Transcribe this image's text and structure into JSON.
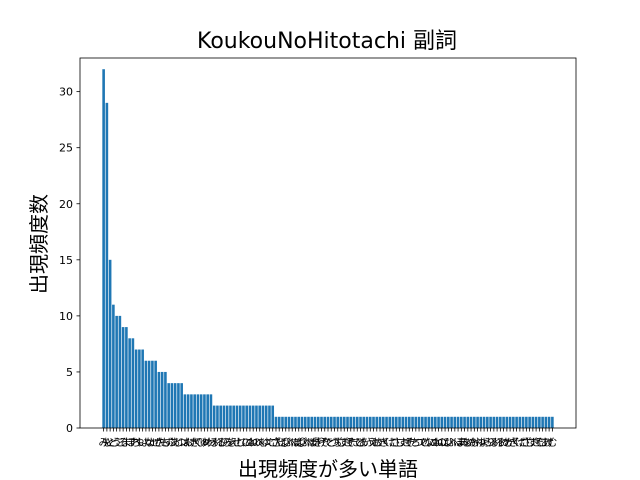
{
  "chart_data": {
    "type": "bar",
    "title": "KoukouNoHitotachi 副詞",
    "xlabel": "出現頻度が多い単語",
    "ylabel": "出現頻度数",
    "ylim": [
      0,
      33
    ],
    "yticks": [
      0,
      5,
      10,
      15,
      20,
      25,
      30
    ],
    "color": "#1f77b4",
    "grid": false,
    "categories": [
      "み",
      "も",
      "と",
      "ど",
      "う",
      "こ",
      "そ",
      "ま",
      "ほ",
      "す",
      "ち",
      "や",
      "い",
      "よ",
      "な",
      "か",
      "ぜ",
      "さ",
      "た",
      "も",
      "ず",
      "ふ",
      "あ",
      "じ",
      "つ",
      "は",
      "お",
      "け",
      "き",
      "く",
      "ひ",
      "ゆ",
      "め",
      "わ",
      "ろ",
      "れ",
      "る",
      "り",
      "ら",
      "を",
      "え",
      "せ",
      "し",
      "て",
      "に",
      "ぬ",
      "ね",
      "の",
      "へ",
      "む",
      "ゆ",
      "ぐ",
      "ご",
      "ざ",
      "だ",
      "ば",
      "び",
      "ぶ",
      "べ",
      "ぼ",
      "ぱ",
      "ぴ",
      "ぷ",
      "ぺ",
      "ぽ",
      "が",
      "ぎ",
      "げ",
      "ぞ",
      "で",
      "ど",
      "づ",
      "ぢ",
      "じ",
      "ず",
      "ぜ",
      "ぞ",
      "だ",
      "で",
      "ど",
      "あ",
      "い",
      "う",
      "え",
      "お",
      "か",
      "き",
      "く",
      "け",
      "こ",
      "さ",
      "し",
      "す",
      "せ",
      "そ",
      "た",
      "ち",
      "つ",
      "て",
      "と",
      "な",
      "に",
      "ぬ",
      "ね",
      "の",
      "は",
      "ひ",
      "ふ",
      "へ",
      "ほ",
      "ま",
      "み",
      "む",
      "め",
      "も",
      "や",
      "ゆ",
      "よ",
      "ら",
      "り",
      "る",
      "れ",
      "ろ",
      "わ",
      "を",
      "が",
      "ぎ",
      "ぐ",
      "げ",
      "ご",
      "ざ",
      "じ",
      "ず",
      "ぜ",
      "ぞ",
      "こ",
      "あ",
      "げ",
      "む"
    ],
    "values": [
      32,
      29,
      15,
      11,
      10,
      10,
      9,
      9,
      8,
      8,
      7,
      7,
      7,
      6,
      6,
      6,
      6,
      5,
      5,
      5,
      4,
      4,
      4,
      4,
      4,
      3,
      3,
      3,
      3,
      3,
      3,
      3,
      3,
      3,
      2,
      2,
      2,
      2,
      2,
      2,
      2,
      2,
      2,
      2,
      2,
      2,
      2,
      2,
      2,
      2,
      2,
      2,
      2,
      1,
      1,
      1,
      1,
      1,
      1,
      1,
      1,
      1,
      1,
      1,
      1,
      1,
      1,
      1,
      1,
      1,
      1,
      1,
      1,
      1,
      1,
      1,
      1,
      1,
      1,
      1,
      1,
      1,
      1,
      1,
      1,
      1,
      1,
      1,
      1,
      1,
      1,
      1,
      1,
      1,
      1,
      1,
      1,
      1,
      1,
      1,
      1,
      1,
      1,
      1,
      1,
      1,
      1,
      1,
      1,
      1,
      1,
      1,
      1,
      1,
      1,
      1,
      1,
      1,
      1,
      1,
      1,
      1,
      1,
      1,
      1,
      1,
      1,
      1,
      1,
      1,
      1,
      1,
      1,
      1,
      1,
      1,
      1,
      1,
      1
    ]
  }
}
